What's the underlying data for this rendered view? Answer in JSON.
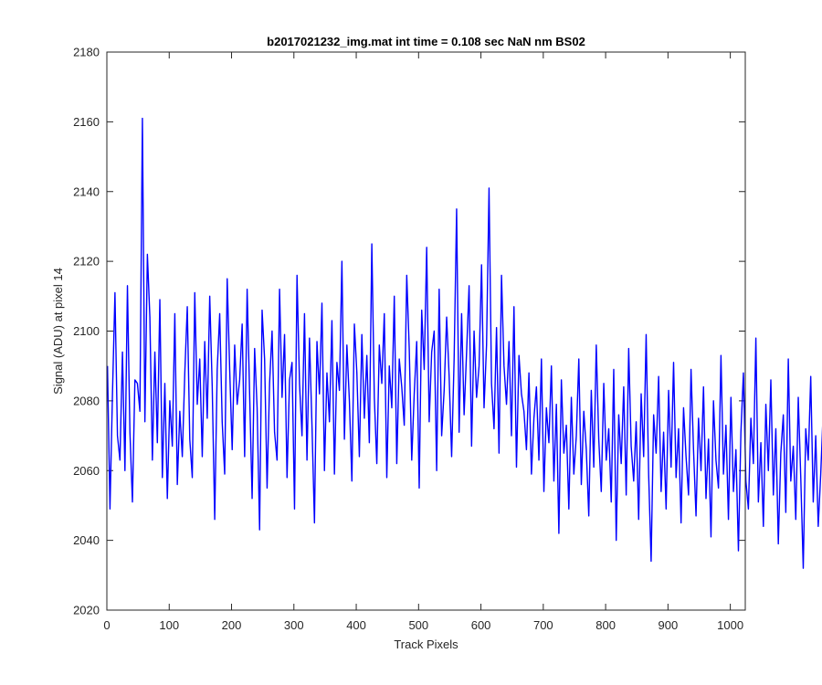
{
  "chart_data": {
    "type": "line",
    "title": "b2017021232_img.mat int time = 0.108 sec  NaN nm BS02",
    "xlabel": "Track Pixels",
    "ylabel": "Signal (ADU) at pixel 14",
    "xlim": [
      0,
      1024
    ],
    "ylim": [
      2020,
      2180
    ],
    "x_ticks": [
      0,
      100,
      200,
      300,
      400,
      500,
      600,
      700,
      800,
      900,
      1000
    ],
    "y_ticks": [
      2020,
      2040,
      2060,
      2080,
      2100,
      2120,
      2140,
      2160,
      2180
    ],
    "x_tick_labels": [
      "0",
      "100",
      "200",
      "300",
      "400",
      "500",
      "600",
      "700",
      "800",
      "900",
      "1000"
    ],
    "y_tick_labels": [
      "2020",
      "2040",
      "2060",
      "2080",
      "2100",
      "2120",
      "2140",
      "2160",
      "2180"
    ],
    "grid": false,
    "line_color": "#0000ff",
    "axis_color": "#262626",
    "series": [
      {
        "x_start": 1,
        "x_step": 4,
        "values": [
          2090,
          2049,
          2082,
          2111,
          2070,
          2063,
          2094,
          2060,
          2113,
          2071,
          2051,
          2086,
          2085,
          2077,
          2161,
          2074,
          2122,
          2104,
          2063,
          2094,
          2068,
          2109,
          2058,
          2085,
          2052,
          2080,
          2067,
          2105,
          2056,
          2077,
          2064,
          2088,
          2107,
          2069,
          2058,
          2111,
          2079,
          2092,
          2064,
          2097,
          2075,
          2110,
          2084,
          2046,
          2089,
          2105,
          2074,
          2059,
          2115,
          2089,
          2066,
          2096,
          2079,
          2086,
          2102,
          2064,
          2112,
          2082,
          2052,
          2095,
          2078,
          2043,
          2106,
          2092,
          2055,
          2085,
          2100,
          2071,
          2063,
          2112,
          2081,
          2099,
          2058,
          2086,
          2091,
          2049,
          2116,
          2085,
          2070,
          2105,
          2063,
          2098,
          2073,
          2045,
          2097,
          2082,
          2108,
          2060,
          2088,
          2074,
          2103,
          2059,
          2091,
          2083,
          2120,
          2069,
          2096,
          2080,
          2057,
          2102,
          2088,
          2064,
          2099,
          2075,
          2093,
          2068,
          2125,
          2081,
          2062,
          2096,
          2085,
          2105,
          2058,
          2090,
          2078,
          2110,
          2062,
          2092,
          2084,
          2073,
          2116,
          2095,
          2063,
          2082,
          2097,
          2055,
          2106,
          2089,
          2124,
          2074,
          2094,
          2100,
          2060,
          2112,
          2070,
          2083,
          2104,
          2087,
          2064,
          2092,
          2135,
          2071,
          2105,
          2076,
          2094,
          2113,
          2067,
          2100,
          2081,
          2090,
          2119,
          2078,
          2096,
          2141,
          2085,
          2072,
          2101,
          2065,
          2116,
          2090,
          2079,
          2097,
          2070,
          2107,
          2061,
          2093,
          2082,
          2077,
          2066,
          2088,
          2059,
          2075,
          2084,
          2063,
          2092,
          2054,
          2078,
          2068,
          2090,
          2057,
          2079,
          2042,
          2086,
          2065,
          2073,
          2049,
          2081,
          2059,
          2070,
          2092,
          2056,
          2077,
          2066,
          2047,
          2083,
          2061,
          2096,
          2069,
          2054,
          2085,
          2063,
          2072,
          2051,
          2089,
          2040,
          2076,
          2062,
          2084,
          2053,
          2095,
          2067,
          2057,
          2074,
          2046,
          2082,
          2064,
          2099,
          2059,
          2034,
          2076,
          2065,
          2087,
          2054,
          2071,
          2049,
          2083,
          2061,
          2091,
          2058,
          2072,
          2045,
          2078,
          2064,
          2053,
          2089,
          2066,
          2047,
          2075,
          2060,
          2084,
          2052,
          2069,
          2041,
          2080,
          2063,
          2055,
          2093,
          2059,
          2073,
          2046,
          2081,
          2054,
          2066,
          2037,
          2071,
          2088,
          2057,
          2049,
          2075,
          2062,
          2098,
          2051,
          2068,
          2044,
          2079,
          2060,
          2086,
          2053,
          2072,
          2039,
          2065,
          2076,
          2048,
          2092,
          2057,
          2067,
          2046,
          2081,
          2058,
          2032,
          2072,
          2063,
          2087,
          2051,
          2070,
          2044,
          2059,
          2077,
          2047,
          2094,
          2062,
          2053,
          2075,
          2041,
          2066,
          2083,
          2050,
          2057,
          2029,
          2069,
          2088,
          2054,
          2061,
          2043,
          2075,
          2056,
          2067,
          2038,
          2095,
          2060,
          2049,
          2073,
          2052,
          2077,
          2042,
          2064,
          2055,
          2084,
          2050,
          2068,
          2036,
          2058,
          2074,
          2045,
          2091,
          2057,
          2048,
          2066,
          2040,
          2071,
          2054,
          2081,
          2046,
          2062,
          2034,
          2060,
          2052,
          2099,
          2049,
          2068,
          2042,
          2058,
          2020,
          2075,
          2051,
          2063,
          2037,
          2056,
          2070,
          2045,
          2061,
          2040,
          2076,
          2053,
          2047,
          2068,
          2036,
          2079,
          2050,
          2059,
          2042,
          2064,
          2033,
          2055,
          2046,
          2073,
          2038,
          2057,
          2044,
          2049,
          2026,
          2061,
          2043,
          2052,
          2038,
          2058,
          2047,
          2064,
          2040,
          2045,
          2054,
          2036,
          2060,
          2042,
          2050,
          2030,
          2074
        ]
      }
    ]
  }
}
